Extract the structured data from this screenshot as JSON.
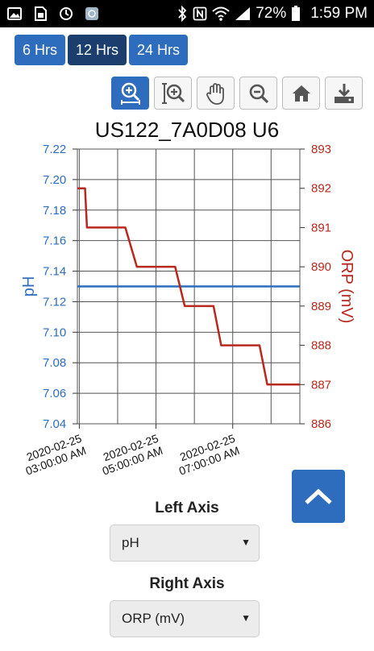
{
  "status_bar": {
    "battery": "72%",
    "time": "1:59 PM",
    "icons": [
      "image-icon",
      "document-icon",
      "sync-icon",
      "app-icon",
      "bluetooth-icon",
      "nfc-icon",
      "wifi-icon",
      "signal-icon",
      "battery-icon"
    ]
  },
  "range_buttons": [
    {
      "label": "6 Hrs",
      "active": false
    },
    {
      "label": "12 Hrs",
      "active": true
    },
    {
      "label": "24 Hrs",
      "active": false
    }
  ],
  "toolbar": {
    "tools": [
      "zoom-select-icon",
      "zoom-y-icon",
      "pan-icon",
      "zoom-out-icon",
      "home-icon",
      "download-icon"
    ],
    "active": "zoom-select-icon"
  },
  "colors": {
    "left_axis": "#2e6dbd",
    "right_axis": "#b8281e",
    "accent": "#2e6dbd",
    "active_button": "#1b3e6e"
  },
  "chart_data": {
    "type": "line",
    "title": "US122_7A0D08 U6",
    "x_ticks": [
      {
        "line1": "2020-02-25",
        "line2": "03:00:00 AM",
        "x": 3
      },
      {
        "line1": "2020-02-25",
        "line2": "05:00:00 AM",
        "x": 5
      },
      {
        "line1": "2020-02-25",
        "line2": "07:00:00 AM",
        "x": 7
      }
    ],
    "xlim": [
      2.95,
      8.75
    ],
    "grid": true,
    "left_axis": {
      "label": "pH",
      "ylim": [
        7.04,
        7.22
      ],
      "ticks": [
        "7.04",
        "7.06",
        "7.08",
        "7.10",
        "7.12",
        "7.14",
        "7.16",
        "7.18",
        "7.20",
        "7.22"
      ]
    },
    "right_axis": {
      "label": "ORP (mV)",
      "ylim": [
        886,
        893
      ],
      "ticks": [
        "886",
        "887",
        "888",
        "889",
        "890",
        "891",
        "892",
        "893"
      ]
    },
    "series": [
      {
        "axis": "left",
        "color": "#2e6dbd",
        "points": [
          [
            2.95,
            7.13
          ],
          [
            8.75,
            7.13
          ]
        ]
      },
      {
        "axis": "right",
        "color": "#b8281e",
        "points": [
          [
            2.95,
            892.0
          ],
          [
            3.15,
            892.0
          ],
          [
            3.2,
            891.0
          ],
          [
            4.2,
            891.0
          ],
          [
            4.5,
            890.0
          ],
          [
            5.5,
            890.0
          ],
          [
            5.75,
            889.0
          ],
          [
            6.5,
            889.0
          ],
          [
            6.7,
            888.0
          ],
          [
            7.7,
            888.0
          ],
          [
            7.9,
            887.0
          ],
          [
            8.75,
            887.0
          ]
        ]
      }
    ]
  },
  "left_axis_selector": {
    "label": "Left Axis",
    "value": "pH"
  },
  "right_axis_selector": {
    "label": "Right Axis",
    "value": "ORP (mV)"
  }
}
